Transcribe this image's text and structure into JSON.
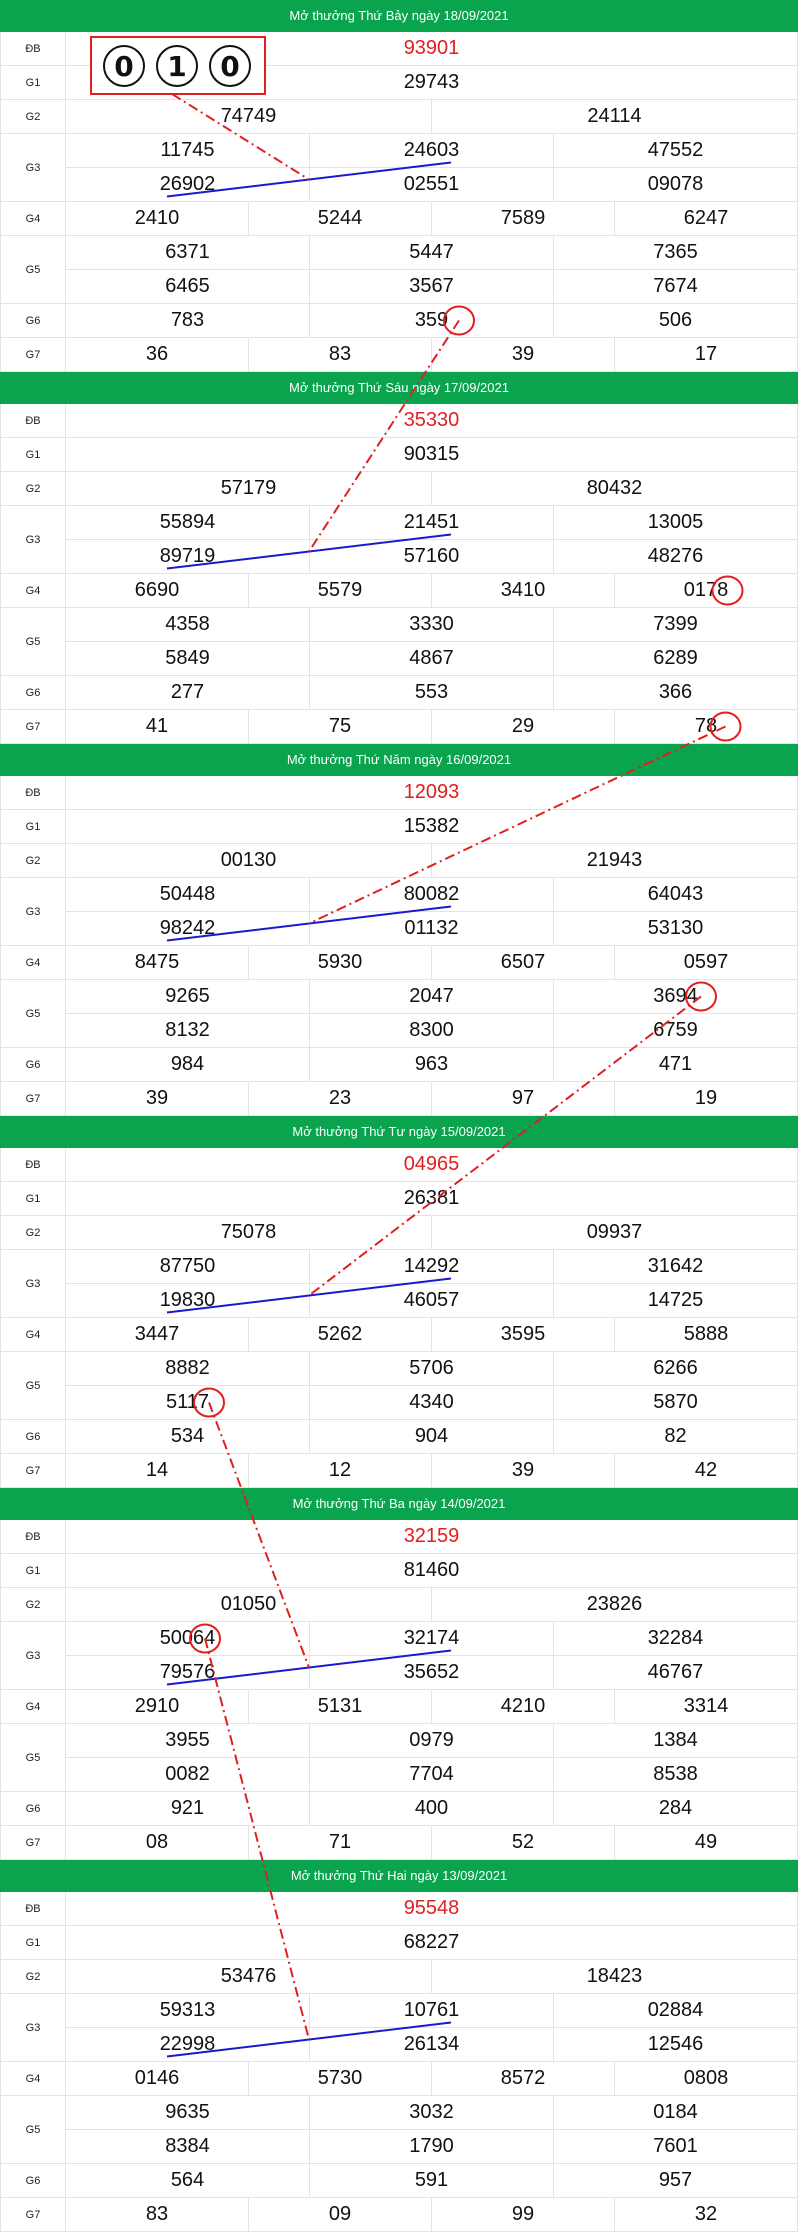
{
  "draws": [
    {
      "title": "Mở thưởng Thứ Bảy ngày 18/09/2021",
      "prizes": [
        {
          "label": "ĐB",
          "lines": [
            [
              "93901"
            ]
          ]
        },
        {
          "label": "G1",
          "lines": [
            [
              "29743"
            ]
          ]
        },
        {
          "label": "G2",
          "lines": [
            [
              "74749",
              "24114"
            ]
          ]
        },
        {
          "label": "G3",
          "lines": [
            [
              "11745",
              "24603",
              "47552"
            ],
            [
              "26902",
              "02551",
              "09078"
            ]
          ]
        },
        {
          "label": "G4",
          "lines": [
            [
              "2410",
              "5244",
              "7589",
              "6247"
            ]
          ]
        },
        {
          "label": "G5",
          "lines": [
            [
              "6371",
              "5447",
              "7365"
            ],
            [
              "6465",
              "3567",
              "7674"
            ]
          ]
        },
        {
          "label": "G6",
          "lines": [
            [
              "783",
              "359",
              "506"
            ]
          ]
        },
        {
          "label": "G7",
          "lines": [
            [
              "36",
              "83",
              "39",
              "17"
            ]
          ]
        }
      ]
    },
    {
      "title": "Mở thưởng Thứ Sáu ngày 17/09/2021",
      "prizes": [
        {
          "label": "ĐB",
          "lines": [
            [
              "35330"
            ]
          ]
        },
        {
          "label": "G1",
          "lines": [
            [
              "90315"
            ]
          ]
        },
        {
          "label": "G2",
          "lines": [
            [
              "57179",
              "80432"
            ]
          ]
        },
        {
          "label": "G3",
          "lines": [
            [
              "55894",
              "21451",
              "13005"
            ],
            [
              "89719",
              "57160",
              "48276"
            ]
          ]
        },
        {
          "label": "G4",
          "lines": [
            [
              "6690",
              "5579",
              "3410",
              "0178"
            ]
          ]
        },
        {
          "label": "G5",
          "lines": [
            [
              "4358",
              "3330",
              "7399"
            ],
            [
              "5849",
              "4867",
              "6289"
            ]
          ]
        },
        {
          "label": "G6",
          "lines": [
            [
              "277",
              "553",
              "366"
            ]
          ]
        },
        {
          "label": "G7",
          "lines": [
            [
              "41",
              "75",
              "29",
              "78"
            ]
          ]
        }
      ]
    },
    {
      "title": "Mở thưởng Thứ Năm ngày 16/09/2021",
      "prizes": [
        {
          "label": "ĐB",
          "lines": [
            [
              "12093"
            ]
          ]
        },
        {
          "label": "G1",
          "lines": [
            [
              "15382"
            ]
          ]
        },
        {
          "label": "G2",
          "lines": [
            [
              "00130",
              "21943"
            ]
          ]
        },
        {
          "label": "G3",
          "lines": [
            [
              "50448",
              "80082",
              "64043"
            ],
            [
              "98242",
              "01132",
              "53130"
            ]
          ]
        },
        {
          "label": "G4",
          "lines": [
            [
              "8475",
              "5930",
              "6507",
              "0597"
            ]
          ]
        },
        {
          "label": "G5",
          "lines": [
            [
              "9265",
              "2047",
              "3694"
            ],
            [
              "8132",
              "8300",
              "6759"
            ]
          ]
        },
        {
          "label": "G6",
          "lines": [
            [
              "984",
              "963",
              "471"
            ]
          ]
        },
        {
          "label": "G7",
          "lines": [
            [
              "39",
              "23",
              "97",
              "19"
            ]
          ]
        }
      ]
    },
    {
      "title": "Mở thưởng Thứ Tư ngày 15/09/2021",
      "prizes": [
        {
          "label": "ĐB",
          "lines": [
            [
              "04965"
            ]
          ]
        },
        {
          "label": "G1",
          "lines": [
            [
              "26381"
            ]
          ]
        },
        {
          "label": "G2",
          "lines": [
            [
              "75078",
              "09937"
            ]
          ]
        },
        {
          "label": "G3",
          "lines": [
            [
              "87750",
              "14292",
              "31642"
            ],
            [
              "19830",
              "46057",
              "14725"
            ]
          ]
        },
        {
          "label": "G4",
          "lines": [
            [
              "3447",
              "5262",
              "3595",
              "5888"
            ]
          ]
        },
        {
          "label": "G5",
          "lines": [
            [
              "8882",
              "5706",
              "6266"
            ],
            [
              "5117",
              "4340",
              "5870"
            ]
          ]
        },
        {
          "label": "G6",
          "lines": [
            [
              "534",
              "904",
              "82"
            ]
          ]
        },
        {
          "label": "G7",
          "lines": [
            [
              "14",
              "12",
              "39",
              "42"
            ]
          ]
        }
      ]
    },
    {
      "title": "Mở thưởng Thứ Ba ngày 14/09/2021",
      "prizes": [
        {
          "label": "ĐB",
          "lines": [
            [
              "32159"
            ]
          ]
        },
        {
          "label": "G1",
          "lines": [
            [
              "81460"
            ]
          ]
        },
        {
          "label": "G2",
          "lines": [
            [
              "01050",
              "23826"
            ]
          ]
        },
        {
          "label": "G3",
          "lines": [
            [
              "50064",
              "32174",
              "32284"
            ],
            [
              "79576",
              "35652",
              "46767"
            ]
          ]
        },
        {
          "label": "G4",
          "lines": [
            [
              "2910",
              "5131",
              "4210",
              "3314"
            ]
          ]
        },
        {
          "label": "G5",
          "lines": [
            [
              "3955",
              "0979",
              "1384"
            ],
            [
              "0082",
              "7704",
              "8538"
            ]
          ]
        },
        {
          "label": "G6",
          "lines": [
            [
              "921",
              "400",
              "284"
            ]
          ]
        },
        {
          "label": "G7",
          "lines": [
            [
              "08",
              "71",
              "52",
              "49"
            ]
          ]
        }
      ]
    },
    {
      "title": "Mở thưởng Thứ Hai ngày 13/09/2021",
      "prizes": [
        {
          "label": "ĐB",
          "lines": [
            [
              "95548"
            ]
          ]
        },
        {
          "label": "G1",
          "lines": [
            [
              "68227"
            ]
          ]
        },
        {
          "label": "G2",
          "lines": [
            [
              "53476",
              "18423"
            ]
          ]
        },
        {
          "label": "G3",
          "lines": [
            [
              "59313",
              "10761",
              "02884"
            ],
            [
              "22998",
              "26134",
              "12546"
            ]
          ]
        },
        {
          "label": "G4",
          "lines": [
            [
              "0146",
              "5730",
              "8572",
              "0808"
            ]
          ]
        },
        {
          "label": "G5",
          "lines": [
            [
              "9635",
              "3032",
              "0184"
            ],
            [
              "8384",
              "1790",
              "7601"
            ]
          ]
        },
        {
          "label": "G6",
          "lines": [
            [
              "564",
              "591",
              "957"
            ]
          ]
        },
        {
          "label": "G7",
          "lines": [
            [
              "83",
              "09",
              "99",
              "32"
            ]
          ]
        }
      ]
    }
  ],
  "prediction_digits": [
    "0",
    "1",
    "0"
  ],
  "colors": {
    "header": "#0aa34e",
    "special": "#e02020",
    "annot": "#e02020",
    "trend": "#1a1acc"
  }
}
